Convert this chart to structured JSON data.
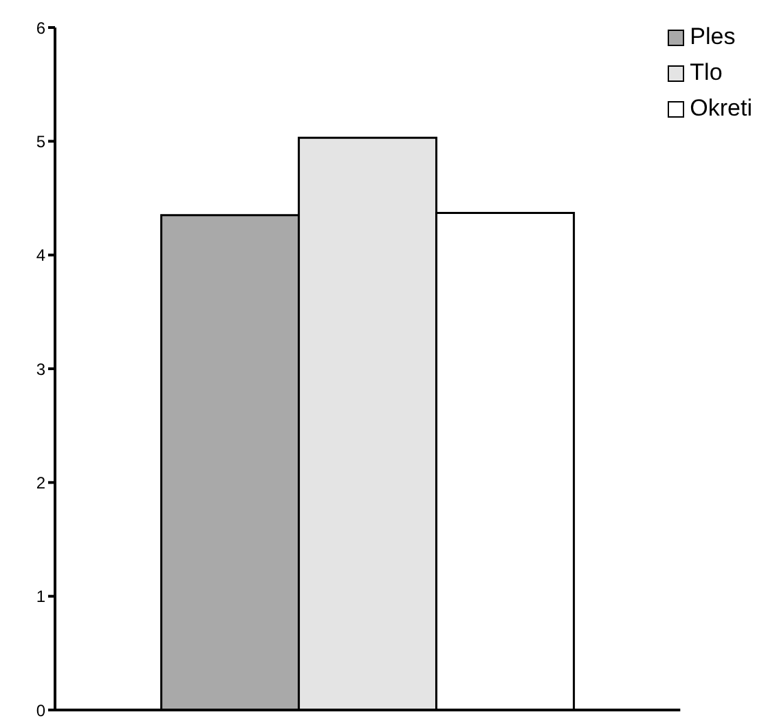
{
  "chart_data": {
    "type": "bar",
    "categories": [
      null
    ],
    "series": [
      {
        "name": "Ples",
        "color": "#a9a9a9",
        "values": [
          4.35
        ]
      },
      {
        "name": "Tlo",
        "color": "#e4e4e4",
        "values": [
          5.03
        ]
      },
      {
        "name": "Okreti",
        "color": "#ffffff",
        "values": [
          4.37
        ]
      }
    ],
    "ylim": [
      0,
      6
    ],
    "yticks": [
      0,
      1,
      2,
      3,
      4,
      5,
      6
    ],
    "grid": false,
    "legend": "top right"
  }
}
